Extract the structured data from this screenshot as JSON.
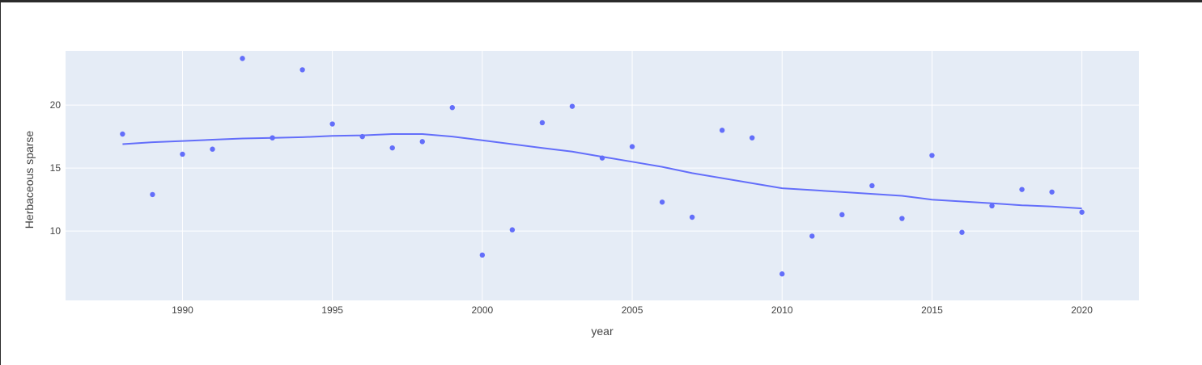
{
  "chart_data": {
    "type": "scatter",
    "xlabel": "year",
    "ylabel": "Herbaceous sparse",
    "xlim": [
      1986.1,
      2021.9
    ],
    "ylim": [
      4.5,
      24.3
    ],
    "x_ticks": [
      1990,
      1995,
      2000,
      2005,
      2010,
      2015,
      2020
    ],
    "y_ticks": [
      10,
      15,
      20
    ],
    "grid": true,
    "colors": {
      "marker": "#636efa",
      "plot_bg": "#e5ecf6",
      "grid": "#ffffff"
    },
    "series": [
      {
        "mode": "markers",
        "points": [
          [
            1988,
            17.7
          ],
          [
            1989,
            12.9
          ],
          [
            1990,
            16.1
          ],
          [
            1991,
            16.5
          ],
          [
            1992,
            23.7
          ],
          [
            1993,
            17.4
          ],
          [
            1994,
            22.8
          ],
          [
            1995,
            18.5
          ],
          [
            1996,
            17.5
          ],
          [
            1997,
            16.6
          ],
          [
            1998,
            17.1
          ],
          [
            1999,
            19.8
          ],
          [
            2000,
            8.1
          ],
          [
            2001,
            10.1
          ],
          [
            2002,
            18.6
          ],
          [
            2003,
            19.9
          ],
          [
            2004,
            15.8
          ],
          [
            2005,
            16.7
          ],
          [
            2006,
            12.3
          ],
          [
            2007,
            11.1
          ],
          [
            2008,
            18.0
          ],
          [
            2009,
            17.4
          ],
          [
            2010,
            6.6
          ],
          [
            2011,
            9.6
          ],
          [
            2012,
            11.3
          ],
          [
            2013,
            13.6
          ],
          [
            2014,
            11.0
          ],
          [
            2015,
            16.0
          ],
          [
            2016,
            9.9
          ],
          [
            2017,
            12.0
          ],
          [
            2018,
            13.3
          ],
          [
            2019,
            13.1
          ],
          [
            2020,
            11.5
          ]
        ]
      },
      {
        "mode": "lines",
        "points": [
          [
            1988,
            16.9
          ],
          [
            1989,
            17.05
          ],
          [
            1990,
            17.15
          ],
          [
            1991,
            17.25
          ],
          [
            1992,
            17.35
          ],
          [
            1993,
            17.4
          ],
          [
            1994,
            17.45
          ],
          [
            1995,
            17.55
          ],
          [
            1996,
            17.6
          ],
          [
            1997,
            17.7
          ],
          [
            1998,
            17.7
          ],
          [
            1999,
            17.5
          ],
          [
            2000,
            17.2
          ],
          [
            2001,
            16.9
          ],
          [
            2002,
            16.6
          ],
          [
            2003,
            16.3
          ],
          [
            2004,
            15.9
          ],
          [
            2005,
            15.5
          ],
          [
            2006,
            15.1
          ],
          [
            2007,
            14.6
          ],
          [
            2008,
            14.2
          ],
          [
            2009,
            13.8
          ],
          [
            2010,
            13.4
          ],
          [
            2011,
            13.25
          ],
          [
            2012,
            13.1
          ],
          [
            2013,
            12.95
          ],
          [
            2014,
            12.8
          ],
          [
            2015,
            12.5
          ],
          [
            2016,
            12.35
          ],
          [
            2017,
            12.2
          ],
          [
            2018,
            12.05
          ],
          [
            2019,
            11.95
          ],
          [
            2020,
            11.8
          ]
        ]
      }
    ]
  }
}
